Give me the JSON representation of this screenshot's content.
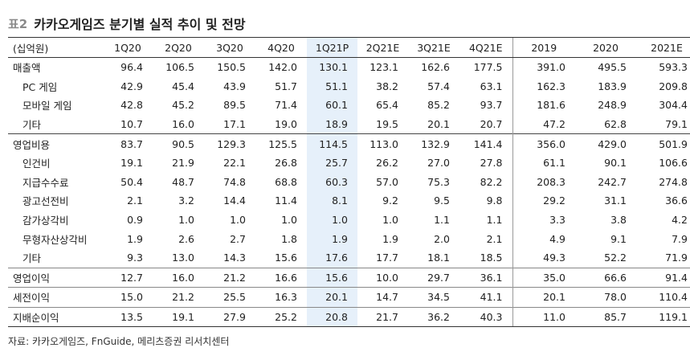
{
  "title": {
    "tag": "표2",
    "text": "카카오게임즈 분기별 실적 추이 및 전망"
  },
  "table": {
    "unit_label": "(십억원)",
    "columns": [
      "1Q20",
      "2Q20",
      "3Q20",
      "4Q20",
      "1Q21P",
      "2Q21E",
      "3Q21E",
      "4Q21E",
      "2019",
      "2020",
      "2021E"
    ],
    "rows": [
      {
        "label": "매출액",
        "values": [
          "96.4",
          "106.5",
          "150.5",
          "142.0",
          "130.1",
          "123.1",
          "162.6",
          "177.5",
          "391.0",
          "495.5",
          "593.3"
        ]
      },
      {
        "label": "PC 게임",
        "values": [
          "42.9",
          "45.4",
          "43.9",
          "51.7",
          "51.1",
          "38.2",
          "57.4",
          "63.1",
          "162.3",
          "183.9",
          "209.8"
        ]
      },
      {
        "label": "모바일 게임",
        "values": [
          "42.8",
          "45.2",
          "89.5",
          "71.4",
          "60.1",
          "65.4",
          "85.2",
          "93.7",
          "181.6",
          "248.9",
          "304.4"
        ]
      },
      {
        "label": "기타",
        "values": [
          "10.7",
          "16.0",
          "17.1",
          "19.0",
          "18.9",
          "19.5",
          "20.1",
          "20.7",
          "47.2",
          "62.8",
          "79.1"
        ]
      },
      {
        "label": "영업비용",
        "values": [
          "83.7",
          "90.5",
          "129.3",
          "125.5",
          "114.5",
          "113.0",
          "132.9",
          "141.4",
          "356.0",
          "429.0",
          "501.9"
        ]
      },
      {
        "label": "인건비",
        "values": [
          "19.1",
          "21.9",
          "22.1",
          "26.8",
          "25.7",
          "26.2",
          "27.0",
          "27.8",
          "61.1",
          "90.1",
          "106.6"
        ]
      },
      {
        "label": "지급수수료",
        "values": [
          "50.4",
          "48.7",
          "74.8",
          "68.8",
          "60.3",
          "57.0",
          "75.3",
          "82.2",
          "208.3",
          "242.7",
          "274.8"
        ]
      },
      {
        "label": "광고선전비",
        "values": [
          "2.1",
          "3.2",
          "14.4",
          "11.4",
          "8.1",
          "9.2",
          "9.5",
          "9.8",
          "29.2",
          "31.1",
          "36.6"
        ]
      },
      {
        "label": "감가상각비",
        "values": [
          "0.9",
          "1.0",
          "1.0",
          "1.0",
          "1.0",
          "1.0",
          "1.1",
          "1.1",
          "3.3",
          "3.8",
          "4.2"
        ]
      },
      {
        "label": "무형자산상각비",
        "values": [
          "1.9",
          "2.6",
          "2.7",
          "1.8",
          "1.9",
          "1.9",
          "2.0",
          "2.1",
          "4.9",
          "9.1",
          "7.9"
        ]
      },
      {
        "label": "기타",
        "values": [
          "9.3",
          "13.0",
          "14.3",
          "15.6",
          "17.6",
          "17.7",
          "18.1",
          "18.5",
          "49.3",
          "52.2",
          "71.9"
        ]
      },
      {
        "label": "영업이익",
        "values": [
          "12.7",
          "16.0",
          "21.2",
          "16.6",
          "15.6",
          "10.0",
          "29.7",
          "36.1",
          "35.0",
          "66.6",
          "91.4"
        ]
      },
      {
        "label": "세전이익",
        "values": [
          "15.0",
          "21.2",
          "25.5",
          "16.3",
          "20.1",
          "14.7",
          "34.5",
          "41.1",
          "20.1",
          "78.0",
          "110.4"
        ]
      },
      {
        "label": "지배순이익",
        "values": [
          "13.5",
          "19.1",
          "27.9",
          "25.2",
          "20.8",
          "21.7",
          "36.2",
          "40.3",
          "11.0",
          "85.7",
          "119.1"
        ]
      }
    ]
  },
  "source": "자료: 카카오게임즈, FnGuide, 메리츠증권 리서치센터",
  "colors": {
    "highlight": "#e6f0fa",
    "title_tag": "#8a8a8a"
  }
}
